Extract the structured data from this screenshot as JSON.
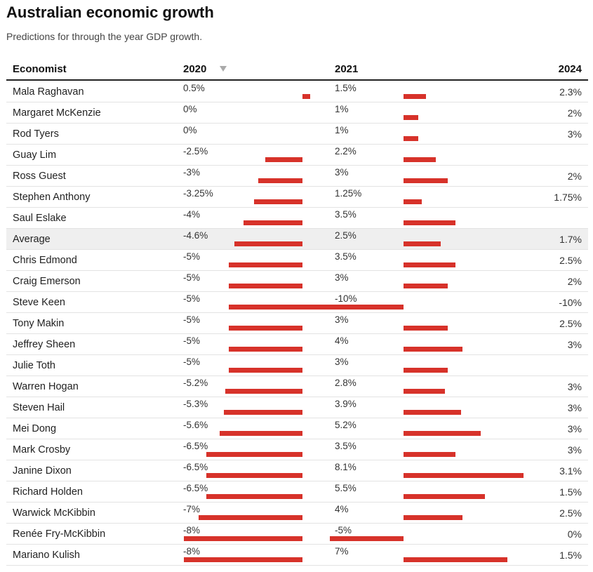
{
  "chart_data": {
    "type": "table",
    "title": "Australian economic growth",
    "subtitle": "Predictions for through the year GDP growth.",
    "columns": [
      "Economist",
      "2020",
      "2021",
      "2024"
    ],
    "sort_column": "2020",
    "colors": {
      "bar": "#d7322a",
      "highlight_row": "#efefef"
    },
    "rows": [
      {
        "name": "Mala Raghavan",
        "y2020": 0.5,
        "y2020_label": "0.5%",
        "y2021": 1.5,
        "y2021_label": "1.5%",
        "y2024_label": "2.3%"
      },
      {
        "name": "Margaret McKenzie",
        "y2020": 0,
        "y2020_label": "0%",
        "y2021": 1,
        "y2021_label": "1%",
        "y2024_label": "2%"
      },
      {
        "name": "Rod Tyers",
        "y2020": 0,
        "y2020_label": "0%",
        "y2021": 1,
        "y2021_label": "1%",
        "y2024_label": "3%"
      },
      {
        "name": "Guay Lim",
        "y2020": -2.5,
        "y2020_label": "-2.5%",
        "y2021": 2.2,
        "y2021_label": "2.2%",
        "y2024_label": ""
      },
      {
        "name": "Ross Guest",
        "y2020": -3,
        "y2020_label": "-3%",
        "y2021": 3,
        "y2021_label": "3%",
        "y2024_label": "2%"
      },
      {
        "name": "Stephen Anthony",
        "y2020": -3.25,
        "y2020_label": "-3.25%",
        "y2021": 1.25,
        "y2021_label": "1.25%",
        "y2024_label": "1.75%"
      },
      {
        "name": "Saul Eslake",
        "y2020": -4,
        "y2020_label": "-4%",
        "y2021": 3.5,
        "y2021_label": "3.5%",
        "y2024_label": ""
      },
      {
        "name": "Average",
        "y2020": -4.6,
        "y2020_label": "-4.6%",
        "y2021": 2.5,
        "y2021_label": "2.5%",
        "y2024_label": "1.7%",
        "highlight": true
      },
      {
        "name": "Chris Edmond",
        "y2020": -5,
        "y2020_label": "-5%",
        "y2021": 3.5,
        "y2021_label": "3.5%",
        "y2024_label": "2.5%"
      },
      {
        "name": "Craig Emerson",
        "y2020": -5,
        "y2020_label": "-5%",
        "y2021": 3,
        "y2021_label": "3%",
        "y2024_label": "2%"
      },
      {
        "name": "Steve Keen",
        "y2020": -5,
        "y2020_label": "-5%",
        "y2021": -10,
        "y2021_label": "-10%",
        "y2024_label": "-10%"
      },
      {
        "name": "Tony Makin",
        "y2020": -5,
        "y2020_label": "-5%",
        "y2021": 3,
        "y2021_label": "3%",
        "y2024_label": "2.5%"
      },
      {
        "name": "Jeffrey Sheen",
        "y2020": -5,
        "y2020_label": "-5%",
        "y2021": 4,
        "y2021_label": "4%",
        "y2024_label": "3%"
      },
      {
        "name": "Julie Toth",
        "y2020": -5,
        "y2020_label": "-5%",
        "y2021": 3,
        "y2021_label": "3%",
        "y2024_label": ""
      },
      {
        "name": "Warren Hogan",
        "y2020": -5.2,
        "y2020_label": "-5.2%",
        "y2021": 2.8,
        "y2021_label": "2.8%",
        "y2024_label": "3%"
      },
      {
        "name": "Steven Hail",
        "y2020": -5.3,
        "y2020_label": "-5.3%",
        "y2021": 3.9,
        "y2021_label": "3.9%",
        "y2024_label": "3%"
      },
      {
        "name": "Mei Dong",
        "y2020": -5.6,
        "y2020_label": "-5.6%",
        "y2021": 5.2,
        "y2021_label": "5.2%",
        "y2024_label": "3%"
      },
      {
        "name": "Mark Crosby",
        "y2020": -6.5,
        "y2020_label": "-6.5%",
        "y2021": 3.5,
        "y2021_label": "3.5%",
        "y2024_label": "3%"
      },
      {
        "name": "Janine Dixon",
        "y2020": -6.5,
        "y2020_label": "-6.5%",
        "y2021": 8.1,
        "y2021_label": "8.1%",
        "y2024_label": "3.1%"
      },
      {
        "name": "Richard Holden",
        "y2020": -6.5,
        "y2020_label": "-6.5%",
        "y2021": 5.5,
        "y2021_label": "5.5%",
        "y2024_label": "1.5%"
      },
      {
        "name": "Warwick McKibbin",
        "y2020": -7,
        "y2020_label": "-7%",
        "y2021": 4,
        "y2021_label": "4%",
        "y2024_label": "2.5%"
      },
      {
        "name": "Renée Fry-McKibbin",
        "y2020": -8,
        "y2020_label": "-8%",
        "y2021": -5,
        "y2021_label": "-5%",
        "y2024_label": "0%"
      },
      {
        "name": "Mariano Kulish",
        "y2020": -8,
        "y2020_label": "-8%",
        "y2021": 7,
        "y2021_label": "7%",
        "y2024_label": "1.5%"
      }
    ]
  }
}
